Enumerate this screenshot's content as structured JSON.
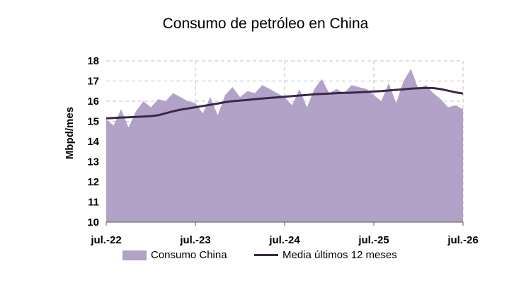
{
  "chart_data": {
    "type": "area",
    "title": "Consumo de petróleo en China",
    "ylabel": "Mbpd/mes",
    "xlabel": "",
    "ylim": [
      10,
      18
    ],
    "yticks": [
      10,
      11,
      12,
      13,
      14,
      15,
      16,
      17,
      18
    ],
    "x_tick_labels": [
      "jul.-22",
      "jul.-23",
      "jul.-24",
      "jul.-25",
      "jul.-26"
    ],
    "grid": "dashed",
    "legend_position": "bottom",
    "colors": {
      "area": "#b3a2c7",
      "line": "#3b2848",
      "grid": "#bfbfbf"
    },
    "series": [
      {
        "name": "Consumo China",
        "kind": "area",
        "values": [
          15.1,
          14.8,
          15.6,
          14.7,
          15.5,
          16.0,
          15.7,
          16.1,
          16.0,
          16.4,
          16.2,
          16.0,
          15.9,
          15.4,
          16.2,
          15.3,
          16.3,
          16.7,
          16.2,
          16.5,
          16.4,
          16.8,
          16.6,
          16.4,
          16.2,
          15.8,
          16.6,
          15.7,
          16.6,
          17.1,
          16.4,
          16.6,
          16.4,
          16.8,
          16.7,
          16.6,
          16.3,
          16.0,
          16.9,
          15.9,
          17.0,
          17.6,
          16.6,
          16.8,
          16.4,
          16.1,
          15.7,
          15.8,
          15.6
        ]
      },
      {
        "name": "Media últimos 12 meses",
        "kind": "line",
        "values": [
          15.15,
          15.17,
          15.19,
          15.2,
          15.22,
          15.24,
          15.26,
          15.3,
          15.4,
          15.5,
          15.58,
          15.64,
          15.7,
          15.76,
          15.82,
          15.88,
          15.95,
          16.0,
          16.03,
          16.06,
          16.1,
          16.13,
          16.16,
          16.19,
          16.22,
          16.25,
          16.28,
          16.31,
          16.34,
          16.36,
          16.38,
          16.4,
          16.41,
          16.42,
          16.44,
          16.46,
          16.48,
          16.5,
          16.53,
          16.56,
          16.59,
          16.62,
          16.64,
          16.66,
          16.65,
          16.6,
          16.52,
          16.44,
          16.38
        ]
      }
    ]
  }
}
